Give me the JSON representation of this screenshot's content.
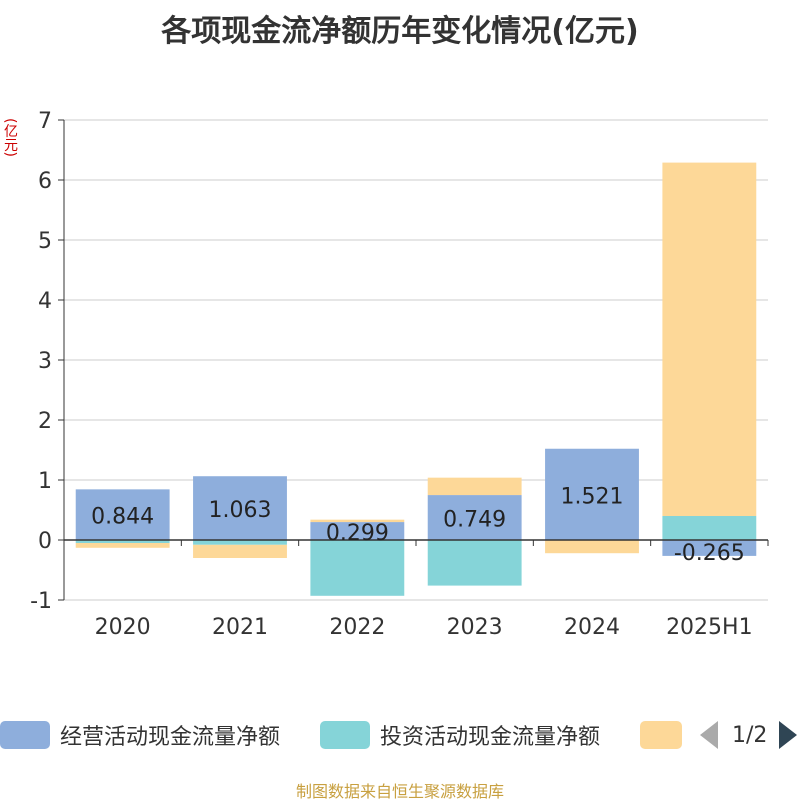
{
  "title": "各项现金流净额历年变化情况(亿元)",
  "y_unit": "(亿元)",
  "source": "制图数据来自恒生聚源数据库",
  "legend": {
    "items": [
      {
        "label": "经营活动现金流量净额",
        "color": "#8eaedc"
      },
      {
        "label": "投资活动现金流量净额",
        "color": "#85d4d8"
      },
      {
        "label": "",
        "color": "#fdd898"
      }
    ],
    "page": "1/2"
  },
  "chart_data": {
    "type": "bar",
    "stacked": true,
    "categories": [
      "2020",
      "2021",
      "2022",
      "2023",
      "2024",
      "2025H1"
    ],
    "series": [
      {
        "name": "经营活动现金流量净额",
        "color": "#8eaedc",
        "values": [
          0.844,
          1.063,
          0.299,
          0.749,
          1.521,
          -0.265
        ],
        "labels": [
          "0.844",
          "1.063",
          "0.299",
          "0.749",
          "1.521",
          "-0.265"
        ]
      },
      {
        "name": "投资活动现金流量净额",
        "color": "#85d4d8",
        "values": [
          -0.05,
          -0.08,
          -0.93,
          -0.76,
          0.0,
          0.4
        ]
      },
      {
        "color": "#fdd898",
        "values": [
          -0.08,
          -0.22,
          0.04,
          0.29,
          -0.22,
          5.89
        ]
      }
    ],
    "ylim": [
      -1,
      7
    ],
    "yticks": [
      -1,
      0,
      1,
      2,
      3,
      4,
      5,
      6,
      7
    ],
    "grid": true
  }
}
